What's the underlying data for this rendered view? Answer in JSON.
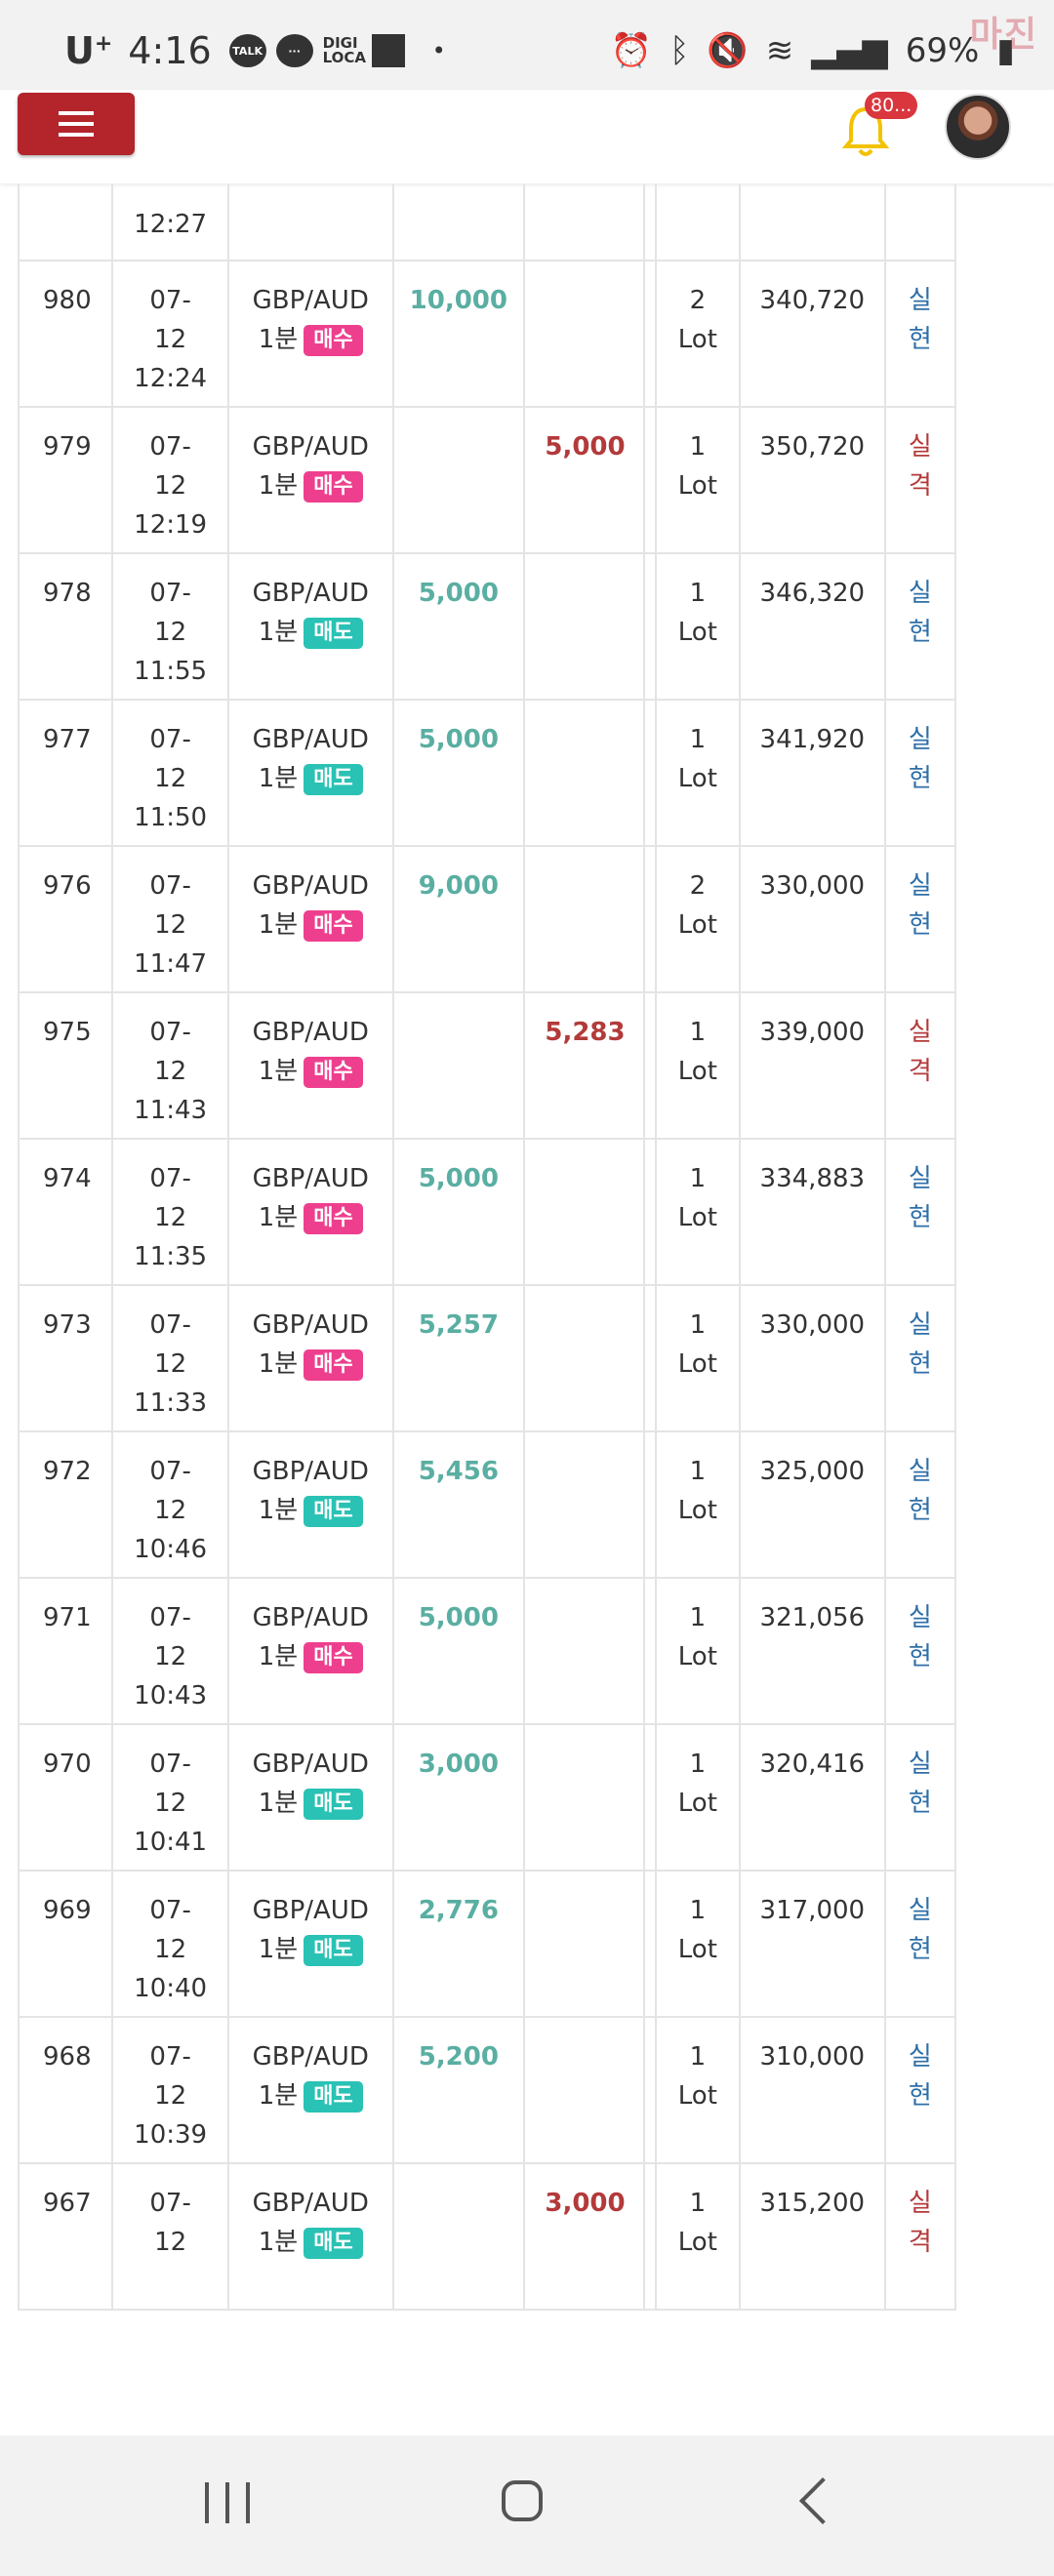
{
  "status_bar": {
    "carrier": "U",
    "carrier_sup": "+",
    "time": "4:16",
    "talk_label": "TALK",
    "digi_line1": "DIGI",
    "digi_line2": "LOCA",
    "battery": "69%",
    "watermark": "마진"
  },
  "header": {
    "notification_count": "80..."
  },
  "table": {
    "partial_top_time": "12:27",
    "rows": [
      {
        "no": "980",
        "date": "07-",
        "day": "12",
        "time": "12:24",
        "pair": "GBP/AUD",
        "interval": "1분",
        "side": "매수",
        "side_type": "buy",
        "profit": "10,000",
        "loss": "",
        "lot_n": "2",
        "lot_u": "Lot",
        "balance": "340,720",
        "r1": "실",
        "r2": "현",
        "result_type": "win"
      },
      {
        "no": "979",
        "date": "07-",
        "day": "12",
        "time": "12:19",
        "pair": "GBP/AUD",
        "interval": "1분",
        "side": "매수",
        "side_type": "buy",
        "profit": "",
        "loss": "5,000",
        "lot_n": "1",
        "lot_u": "Lot",
        "balance": "350,720",
        "r1": "실",
        "r2": "격",
        "result_type": "fail"
      },
      {
        "no": "978",
        "date": "07-",
        "day": "12",
        "time": "11:55",
        "pair": "GBP/AUD",
        "interval": "1분",
        "side": "매도",
        "side_type": "sell",
        "profit": "5,000",
        "loss": "",
        "lot_n": "1",
        "lot_u": "Lot",
        "balance": "346,320",
        "r1": "실",
        "r2": "현",
        "result_type": "win"
      },
      {
        "no": "977",
        "date": "07-",
        "day": "12",
        "time": "11:50",
        "pair": "GBP/AUD",
        "interval": "1분",
        "side": "매도",
        "side_type": "sell",
        "profit": "5,000",
        "loss": "",
        "lot_n": "1",
        "lot_u": "Lot",
        "balance": "341,920",
        "r1": "실",
        "r2": "현",
        "result_type": "win"
      },
      {
        "no": "976",
        "date": "07-",
        "day": "12",
        "time": "11:47",
        "pair": "GBP/AUD",
        "interval": "1분",
        "side": "매수",
        "side_type": "buy",
        "profit": "9,000",
        "loss": "",
        "lot_n": "2",
        "lot_u": "Lot",
        "balance": "330,000",
        "r1": "실",
        "r2": "현",
        "result_type": "win"
      },
      {
        "no": "975",
        "date": "07-",
        "day": "12",
        "time": "11:43",
        "pair": "GBP/AUD",
        "interval": "1분",
        "side": "매수",
        "side_type": "buy",
        "profit": "",
        "loss": "5,283",
        "lot_n": "1",
        "lot_u": "Lot",
        "balance": "339,000",
        "r1": "실",
        "r2": "격",
        "result_type": "fail"
      },
      {
        "no": "974",
        "date": "07-",
        "day": "12",
        "time": "11:35",
        "pair": "GBP/AUD",
        "interval": "1분",
        "side": "매수",
        "side_type": "buy",
        "profit": "5,000",
        "loss": "",
        "lot_n": "1",
        "lot_u": "Lot",
        "balance": "334,883",
        "r1": "실",
        "r2": "현",
        "result_type": "win"
      },
      {
        "no": "973",
        "date": "07-",
        "day": "12",
        "time": "11:33",
        "pair": "GBP/AUD",
        "interval": "1분",
        "side": "매수",
        "side_type": "buy",
        "profit": "5,257",
        "loss": "",
        "lot_n": "1",
        "lot_u": "Lot",
        "balance": "330,000",
        "r1": "실",
        "r2": "현",
        "result_type": "win"
      },
      {
        "no": "972",
        "date": "07-",
        "day": "12",
        "time": "10:46",
        "pair": "GBP/AUD",
        "interval": "1분",
        "side": "매도",
        "side_type": "sell",
        "profit": "5,456",
        "loss": "",
        "lot_n": "1",
        "lot_u": "Lot",
        "balance": "325,000",
        "r1": "실",
        "r2": "현",
        "result_type": "win"
      },
      {
        "no": "971",
        "date": "07-",
        "day": "12",
        "time": "10:43",
        "pair": "GBP/AUD",
        "interval": "1분",
        "side": "매수",
        "side_type": "buy",
        "profit": "5,000",
        "loss": "",
        "lot_n": "1",
        "lot_u": "Lot",
        "balance": "321,056",
        "r1": "실",
        "r2": "현",
        "result_type": "win"
      },
      {
        "no": "970",
        "date": "07-",
        "day": "12",
        "time": "10:41",
        "pair": "GBP/AUD",
        "interval": "1분",
        "side": "매도",
        "side_type": "sell",
        "profit": "3,000",
        "loss": "",
        "lot_n": "1",
        "lot_u": "Lot",
        "balance": "320,416",
        "r1": "실",
        "r2": "현",
        "result_type": "win"
      },
      {
        "no": "969",
        "date": "07-",
        "day": "12",
        "time": "10:40",
        "pair": "GBP/AUD",
        "interval": "1분",
        "side": "매도",
        "side_type": "sell",
        "profit": "2,776",
        "loss": "",
        "lot_n": "1",
        "lot_u": "Lot",
        "balance": "317,000",
        "r1": "실",
        "r2": "현",
        "result_type": "win"
      },
      {
        "no": "968",
        "date": "07-",
        "day": "12",
        "time": "10:39",
        "pair": "GBP/AUD",
        "interval": "1분",
        "side": "매도",
        "side_type": "sell",
        "profit": "5,200",
        "loss": "",
        "lot_n": "1",
        "lot_u": "Lot",
        "balance": "310,000",
        "r1": "실",
        "r2": "현",
        "result_type": "win"
      },
      {
        "no": "967",
        "date": "07-",
        "day": "12",
        "time": "",
        "pair": "GBP/AUD",
        "interval": "1분",
        "side": "매도",
        "side_type": "sell",
        "profit": "",
        "loss": "3,000",
        "lot_n": "1",
        "lot_u": "Lot",
        "balance": "315,200",
        "r1": "실",
        "r2": "격",
        "result_type": "fail"
      }
    ]
  }
}
